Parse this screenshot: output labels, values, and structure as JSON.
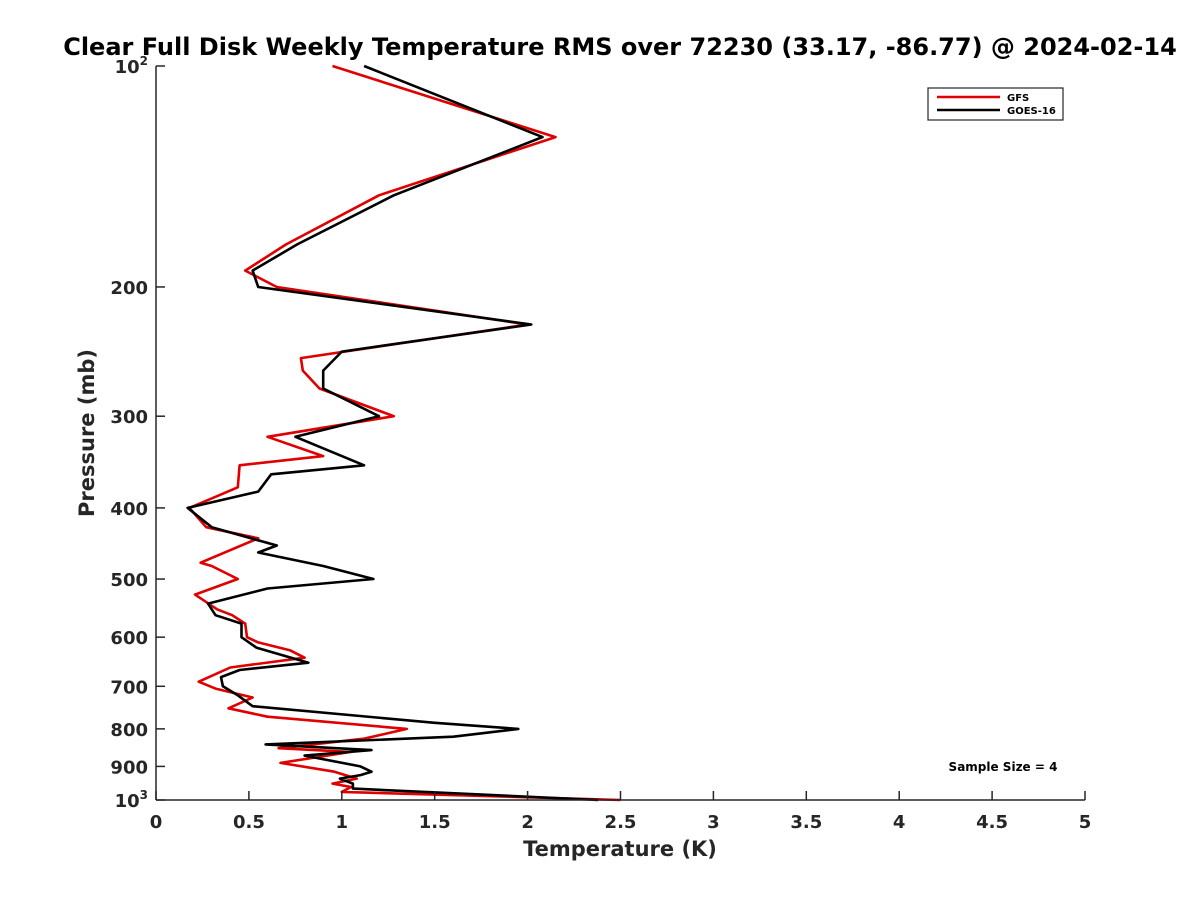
{
  "chart_data": {
    "type": "line",
    "title": "Clear Full Disk Weekly Temperature RMS over 72230 (33.17, -86.77) @ 2024-02-14",
    "xlabel": "Temperature (K)",
    "ylabel": "Pressure (mb)",
    "xlim": [
      0,
      5
    ],
    "ylim": [
      100,
      1000
    ],
    "y_scale": "log",
    "y_reversed": true,
    "x_ticks": [
      "0",
      "0.5",
      "1",
      "1.5",
      "2",
      "2.5",
      "3",
      "3.5",
      "4",
      "4.5",
      "5"
    ],
    "y_ticks": [
      {
        "value": 100,
        "base": "10",
        "sup": "2"
      },
      {
        "value": 200,
        "label": "200"
      },
      {
        "value": 300,
        "label": "300"
      },
      {
        "value": 400,
        "label": "400"
      },
      {
        "value": 500,
        "label": "500"
      },
      {
        "value": 600,
        "label": "600"
      },
      {
        "value": 700,
        "label": "700"
      },
      {
        "value": 800,
        "label": "800"
      },
      {
        "value": 900,
        "label": "900"
      },
      {
        "value": 1000,
        "base": "10",
        "sup": "3"
      }
    ],
    "grid": false,
    "legend_position": "top-right",
    "annotation": "Sample Size = 4",
    "series": [
      {
        "name": "GFS",
        "color": "#e00000",
        "points": [
          [
            0.95,
            100
          ],
          [
            2.15,
            125
          ],
          [
            1.2,
            150
          ],
          [
            0.7,
            175
          ],
          [
            0.48,
            190
          ],
          [
            0.65,
            200
          ],
          [
            2.0,
            225
          ],
          [
            0.78,
            250
          ],
          [
            0.79,
            260
          ],
          [
            0.88,
            275
          ],
          [
            1.28,
            300
          ],
          [
            0.6,
            320
          ],
          [
            0.9,
            340
          ],
          [
            0.45,
            350
          ],
          [
            0.44,
            375
          ],
          [
            0.18,
            400
          ],
          [
            0.27,
            425
          ],
          [
            0.55,
            440
          ],
          [
            0.24,
            475
          ],
          [
            0.3,
            480
          ],
          [
            0.44,
            500
          ],
          [
            0.21,
            525
          ],
          [
            0.33,
            550
          ],
          [
            0.41,
            560
          ],
          [
            0.48,
            575
          ],
          [
            0.49,
            600
          ],
          [
            0.55,
            610
          ],
          [
            0.72,
            625
          ],
          [
            0.8,
            640
          ],
          [
            0.4,
            660
          ],
          [
            0.23,
            690
          ],
          [
            0.32,
            705
          ],
          [
            0.52,
            725
          ],
          [
            0.39,
            750
          ],
          [
            0.6,
            770
          ],
          [
            1.35,
            800
          ],
          [
            1.12,
            825
          ],
          [
            0.66,
            850
          ],
          [
            1.05,
            860
          ],
          [
            0.67,
            890
          ],
          [
            0.96,
            915
          ],
          [
            1.08,
            935
          ],
          [
            0.95,
            950
          ],
          [
            1.05,
            960
          ],
          [
            1.0,
            975
          ],
          [
            2.5,
            1000
          ]
        ]
      },
      {
        "name": "GOES-16",
        "color": "#000000",
        "points": [
          [
            1.12,
            100
          ],
          [
            2.08,
            125
          ],
          [
            1.28,
            150
          ],
          [
            0.76,
            175
          ],
          [
            0.52,
            190
          ],
          [
            0.55,
            200
          ],
          [
            2.02,
            225
          ],
          [
            1.0,
            245
          ],
          [
            0.9,
            260
          ],
          [
            0.9,
            275
          ],
          [
            1.2,
            300
          ],
          [
            0.75,
            320
          ],
          [
            1.12,
            350
          ],
          [
            0.62,
            360
          ],
          [
            0.55,
            380
          ],
          [
            0.17,
            400
          ],
          [
            0.3,
            425
          ],
          [
            0.65,
            450
          ],
          [
            0.55,
            460
          ],
          [
            0.9,
            480
          ],
          [
            1.17,
            500
          ],
          [
            0.6,
            515
          ],
          [
            0.28,
            540
          ],
          [
            0.32,
            560
          ],
          [
            0.46,
            575
          ],
          [
            0.46,
            600
          ],
          [
            0.54,
            620
          ],
          [
            0.82,
            650
          ],
          [
            0.45,
            665
          ],
          [
            0.35,
            680
          ],
          [
            0.36,
            700
          ],
          [
            0.44,
            720
          ],
          [
            0.52,
            745
          ],
          [
            1.5,
            785
          ],
          [
            1.95,
            800
          ],
          [
            1.6,
            820
          ],
          [
            0.59,
            840
          ],
          [
            1.16,
            855
          ],
          [
            0.8,
            870
          ],
          [
            1.1,
            900
          ],
          [
            1.16,
            915
          ],
          [
            1.1,
            925
          ],
          [
            0.99,
            935
          ],
          [
            1.06,
            950
          ],
          [
            1.06,
            965
          ],
          [
            2.38,
            1000
          ]
        ]
      }
    ]
  }
}
